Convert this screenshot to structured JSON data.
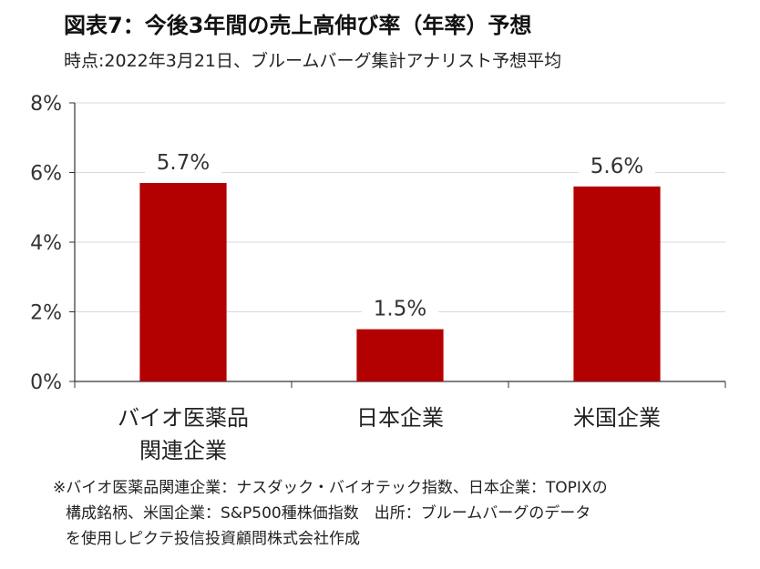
{
  "header": {
    "title": "図表7：今後3年間の売上高伸び率（年率）予想",
    "subtitle": "時点:2022年3月21日、ブルームバーグ集計アナリスト予想平均"
  },
  "chart_data": {
    "type": "bar",
    "categories": [
      [
        "バイオ医薬品",
        "関連企業"
      ],
      [
        "日本企業"
      ],
      [
        "米国企業"
      ]
    ],
    "values": [
      5.7,
      1.5,
      5.6
    ],
    "value_labels": [
      "5.7%",
      "1.5%",
      "5.6%"
    ],
    "ylim": [
      0,
      8
    ],
    "yticks": [
      0,
      2,
      4,
      6,
      8
    ],
    "ytick_labels": [
      "0%",
      "2%",
      "4%",
      "6%",
      "8%"
    ],
    "grid": true,
    "bar_color": "#b30000"
  },
  "footnote": {
    "lines": [
      "※バイオ医薬品関連企業：ナスダック・バイオテック指数、日本企業：TOPIXの",
      "構成銘柄、米国企業：S&P500種株価指数　出所：ブルームバーグのデータ",
      "を使用しピクテ投信投資顧問株式会社作成"
    ]
  }
}
